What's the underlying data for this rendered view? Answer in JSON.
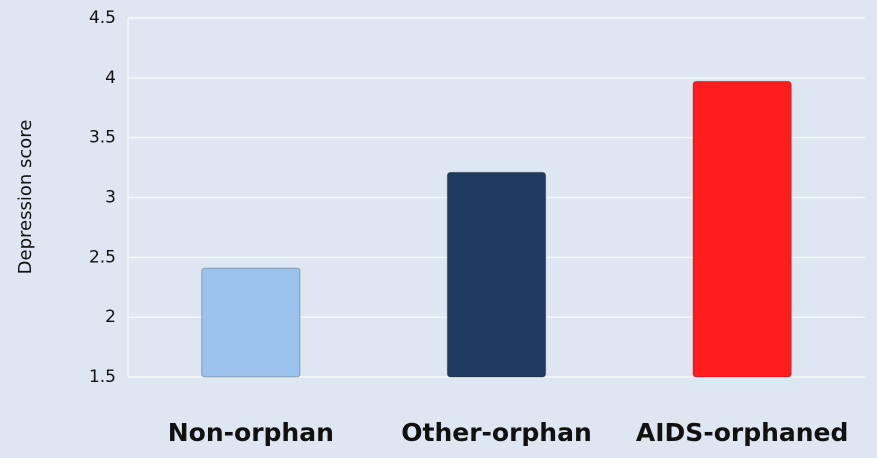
{
  "chart_data": {
    "type": "bar",
    "y_label": "Depression score",
    "categories": [
      "Non-orphan",
      "Other-orphan",
      "AIDS-orphaned"
    ],
    "values": [
      2.41,
      3.21,
      3.97
    ],
    "colors": [
      "#9cc2ee",
      "#1f3a60",
      "#ff1c1c"
    ],
    "ylim": [
      1.5,
      4.5
    ],
    "yticks": [
      1.5,
      2,
      2.5,
      3,
      3.5,
      4,
      4.5
    ],
    "grid": true
  }
}
